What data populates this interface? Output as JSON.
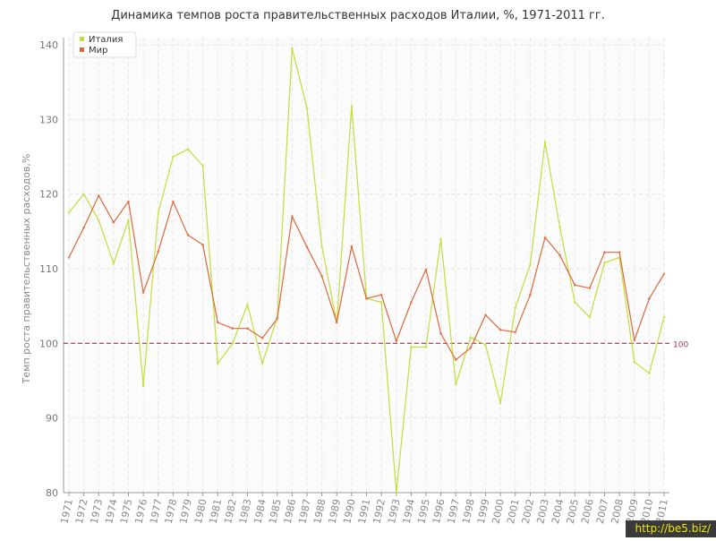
{
  "chart_data": {
    "type": "line",
    "title": "Динамика темпов роста правительственных расходов Италии, %, 1971-2011 гг.",
    "xlabel": "",
    "ylabel": "Темп роста правительственных расходов,%",
    "ylim": [
      80,
      140
    ],
    "yticks": [
      80,
      90,
      100,
      110,
      120,
      130,
      140
    ],
    "grid": true,
    "legend_position": "top-left",
    "reference_line": {
      "value": 100,
      "label": "100",
      "color": "#a0384f"
    },
    "x": [
      "1971",
      "1972",
      "1973",
      "1974",
      "1975",
      "1976",
      "1977",
      "1978",
      "1979",
      "1980",
      "1981",
      "1982",
      "1983",
      "1984",
      "1985",
      "1986",
      "1987",
      "1988",
      "1989",
      "1990",
      "1991",
      "1992",
      "1993",
      "1994",
      "1995",
      "1996",
      "1997",
      "1998",
      "1999",
      "2000",
      "2001",
      "2002",
      "2003",
      "2004",
      "2005",
      "2006",
      "2007",
      "2008",
      "2009",
      "2010",
      "2011"
    ],
    "series": [
      {
        "name": "Италия",
        "color": "#c4dc3c",
        "values": [
          117.5,
          120.0,
          116.5,
          110.7,
          116.5,
          94.3,
          117.5,
          125.0,
          126.0,
          123.8,
          97.3,
          100.0,
          105.2,
          97.3,
          103.5,
          139.5,
          131.5,
          113.0,
          102.8,
          131.8,
          106.0,
          105.5,
          80.0,
          99.5,
          99.5,
          114.0,
          94.5,
          100.8,
          99.8,
          92.0,
          104.8,
          110.5,
          127.0,
          115.5,
          105.5,
          103.5,
          110.8,
          111.5,
          97.5,
          96.0,
          103.5
        ]
      },
      {
        "name": "Мир",
        "color": "#d9693c",
        "values": [
          111.5,
          115.5,
          119.8,
          116.2,
          119.0,
          106.8,
          112.3,
          119.0,
          114.5,
          113.2,
          102.8,
          102.0,
          102.0,
          100.7,
          103.3,
          117.0,
          112.9,
          109.0,
          102.8,
          113.0,
          106.0,
          106.5,
          100.3,
          105.5,
          109.9,
          101.3,
          97.8,
          99.4,
          103.8,
          101.8,
          101.5,
          106.5,
          114.2,
          111.8,
          107.8,
          107.4,
          112.2,
          112.2,
          100.4,
          106.0,
          109.3
        ]
      }
    ]
  },
  "watermark": "http://be5.biz/"
}
